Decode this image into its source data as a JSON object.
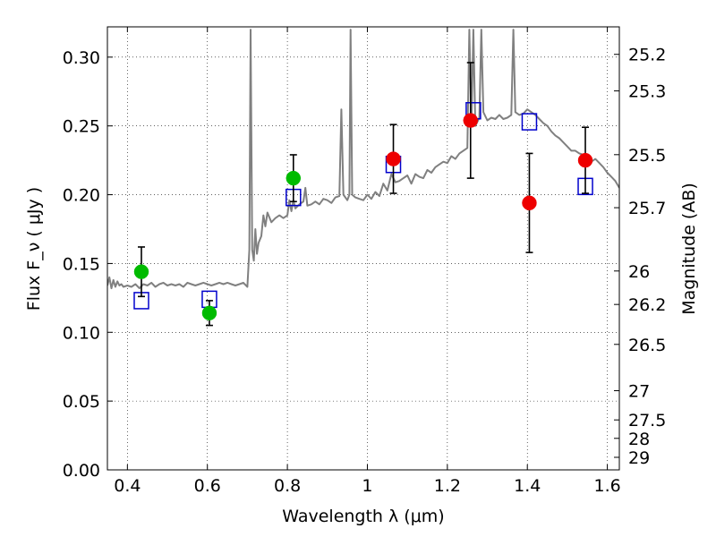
{
  "chart_data": {
    "type": "scatter",
    "xlabel": "Wavelength  λ (μm)",
    "ylabel": "Flux  F_ν  ( μJy )",
    "ylabel_right": "Magnitude (AB)",
    "xlim": [
      0.35,
      1.63
    ],
    "ylim": [
      0.0,
      0.322
    ],
    "grid": true,
    "grid_style": "dotted",
    "x_ticks": [
      {
        "value": 0.4,
        "label": "0.4"
      },
      {
        "value": 0.6,
        "label": "0.6"
      },
      {
        "value": 0.8,
        "label": "0.8"
      },
      {
        "value": 1.0,
        "label": "1"
      },
      {
        "value": 1.2,
        "label": "1.2"
      },
      {
        "value": 1.4,
        "label": "1.4"
      },
      {
        "value": 1.6,
        "label": "1.6"
      }
    ],
    "y_ticks": [
      {
        "value": 0.0,
        "label": "0.00"
      },
      {
        "value": 0.05,
        "label": "0.05"
      },
      {
        "value": 0.1,
        "label": "0.10"
      },
      {
        "value": 0.15,
        "label": "0.15"
      },
      {
        "value": 0.2,
        "label": "0.20"
      },
      {
        "value": 0.25,
        "label": "0.25"
      },
      {
        "value": 0.3,
        "label": "0.30"
      }
    ],
    "right_ticks": [
      {
        "mag": 25.2,
        "label": "25.2"
      },
      {
        "mag": 25.3,
        "label": "25.3"
      },
      {
        "mag": 25.5,
        "label": "25.5"
      },
      {
        "mag": 25.7,
        "label": "25.7"
      },
      {
        "mag": 26,
        "label": "26"
      },
      {
        "mag": 26.2,
        "label": "26.2"
      },
      {
        "mag": 26.5,
        "label": "26.5"
      },
      {
        "mag": 27,
        "label": "27"
      },
      {
        "mag": 27.5,
        "label": "27.5"
      },
      {
        "mag": 28,
        "label": "28"
      },
      {
        "mag": 29,
        "label": "29"
      }
    ],
    "colors": {
      "spectrum": "#808080",
      "green_points": "#00bb00",
      "red_points": "#ee0000",
      "model_squares": "#0000cc",
      "errorbars": "#000000"
    },
    "series": [
      {
        "kind": "spectrum",
        "x": [
          0.35,
          0.355,
          0.36,
          0.365,
          0.37,
          0.375,
          0.38,
          0.385,
          0.39,
          0.4,
          0.41,
          0.42,
          0.43,
          0.44,
          0.45,
          0.46,
          0.47,
          0.48,
          0.49,
          0.5,
          0.51,
          0.52,
          0.53,
          0.54,
          0.55,
          0.56,
          0.57,
          0.58,
          0.59,
          0.6,
          0.61,
          0.62,
          0.63,
          0.64,
          0.65,
          0.66,
          0.67,
          0.68,
          0.69,
          0.7,
          0.705,
          0.708,
          0.712,
          0.716,
          0.72,
          0.724,
          0.728,
          0.735,
          0.74,
          0.745,
          0.75,
          0.76,
          0.77,
          0.78,
          0.79,
          0.8,
          0.805,
          0.81,
          0.815,
          0.82,
          0.83,
          0.84,
          0.845,
          0.85,
          0.86,
          0.87,
          0.88,
          0.89,
          0.9,
          0.91,
          0.92,
          0.93,
          0.935,
          0.94,
          0.95,
          0.955,
          0.958,
          0.962,
          0.97,
          0.98,
          0.99,
          1.0,
          1.01,
          1.02,
          1.03,
          1.04,
          1.05,
          1.06,
          1.07,
          1.08,
          1.09,
          1.1,
          1.11,
          1.12,
          1.13,
          1.14,
          1.15,
          1.16,
          1.17,
          1.18,
          1.19,
          1.2,
          1.21,
          1.22,
          1.23,
          1.24,
          1.25,
          1.255,
          1.26,
          1.265,
          1.27,
          1.28,
          1.285,
          1.29,
          1.3,
          1.31,
          1.32,
          1.33,
          1.34,
          1.35,
          1.36,
          1.365,
          1.37,
          1.38,
          1.39,
          1.4,
          1.41,
          1.42,
          1.43,
          1.44,
          1.45,
          1.46,
          1.47,
          1.48,
          1.49,
          1.5,
          1.51,
          1.52,
          1.53,
          1.54,
          1.55,
          1.56,
          1.57,
          1.58,
          1.59,
          1.6,
          1.61,
          1.62,
          1.63
        ],
        "y": [
          0.134,
          0.14,
          0.132,
          0.138,
          0.133,
          0.137,
          0.134,
          0.135,
          0.133,
          0.134,
          0.133,
          0.135,
          0.132,
          0.135,
          0.134,
          0.136,
          0.133,
          0.135,
          0.136,
          0.134,
          0.135,
          0.134,
          0.135,
          0.133,
          0.136,
          0.135,
          0.134,
          0.135,
          0.136,
          0.135,
          0.134,
          0.135,
          0.136,
          0.135,
          0.136,
          0.135,
          0.134,
          0.135,
          0.136,
          0.133,
          0.16,
          0.32,
          0.16,
          0.152,
          0.175,
          0.157,
          0.165,
          0.17,
          0.185,
          0.177,
          0.187,
          0.18,
          0.183,
          0.185,
          0.183,
          0.185,
          0.196,
          0.188,
          0.196,
          0.19,
          0.193,
          0.195,
          0.205,
          0.192,
          0.193,
          0.195,
          0.193,
          0.197,
          0.196,
          0.194,
          0.198,
          0.199,
          0.262,
          0.2,
          0.196,
          0.2,
          0.32,
          0.2,
          0.198,
          0.197,
          0.196,
          0.2,
          0.197,
          0.202,
          0.199,
          0.208,
          0.203,
          0.215,
          0.209,
          0.21,
          0.212,
          0.214,
          0.208,
          0.215,
          0.213,
          0.212,
          0.218,
          0.216,
          0.22,
          0.222,
          0.224,
          0.223,
          0.228,
          0.226,
          0.23,
          0.232,
          0.234,
          0.32,
          0.25,
          0.32,
          0.25,
          0.256,
          0.32,
          0.26,
          0.254,
          0.256,
          0.255,
          0.258,
          0.255,
          0.256,
          0.258,
          0.32,
          0.26,
          0.258,
          0.259,
          0.262,
          0.26,
          0.258,
          0.255,
          0.252,
          0.25,
          0.246,
          0.243,
          0.241,
          0.238,
          0.235,
          0.232,
          0.232,
          0.23,
          0.229,
          0.228,
          0.224,
          0.226,
          0.223,
          0.22,
          0.216,
          0.213,
          0.21,
          0.205
        ]
      },
      {
        "kind": "model",
        "name": "",
        "x": [
          0.435,
          0.605,
          0.815,
          1.065,
          1.265,
          1.405,
          1.545
        ],
        "y": [
          0.123,
          0.124,
          0.198,
          0.222,
          0.261,
          0.253,
          0.206
        ]
      },
      {
        "kind": "obs-green",
        "name": "",
        "x": [
          0.435,
          0.605,
          0.815
        ],
        "y": [
          0.144,
          0.114,
          0.212
        ],
        "err": [
          0.018,
          0.009,
          0.017
        ]
      },
      {
        "kind": "obs-red",
        "name": "",
        "x": [
          1.065,
          1.258,
          1.405,
          1.545
        ],
        "y": [
          0.226,
          0.254,
          0.194,
          0.225
        ],
        "err": [
          0.025,
          0.042,
          0.036,
          0.024
        ]
      }
    ]
  }
}
